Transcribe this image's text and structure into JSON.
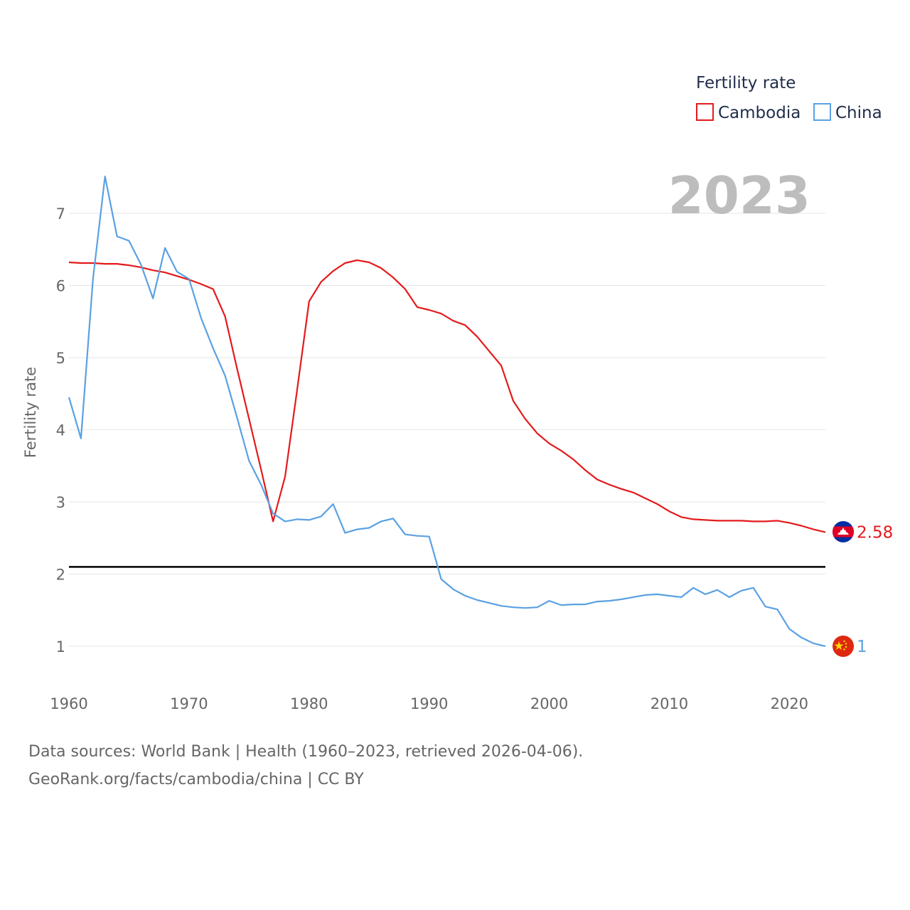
{
  "chart_data": {
    "type": "line",
    "title": "",
    "ylabel": "Fertility rate",
    "xlabel": "",
    "year_label": "2023",
    "xlim": [
      1960,
      2023
    ],
    "ylim": [
      0.5,
      7.5
    ],
    "x_ticks": [
      1960,
      1970,
      1980,
      1990,
      2000,
      2010,
      2020
    ],
    "y_ticks": [
      1,
      2,
      3,
      4,
      5,
      6,
      7
    ],
    "grid": true,
    "reference_line": {
      "y": 2.1,
      "color": "#000000"
    },
    "legend": {
      "title": "Fertility rate",
      "position": "top-right",
      "items": [
        {
          "name": "Cambodia",
          "color": "#e41a1c"
        },
        {
          "name": "China",
          "color": "#5aa1e3"
        }
      ]
    },
    "x": [
      1960,
      1961,
      1962,
      1963,
      1964,
      1965,
      1966,
      1967,
      1968,
      1969,
      1970,
      1971,
      1972,
      1973,
      1974,
      1975,
      1976,
      1977,
      1978,
      1979,
      1980,
      1981,
      1982,
      1983,
      1984,
      1985,
      1986,
      1987,
      1988,
      1989,
      1990,
      1991,
      1992,
      1993,
      1994,
      1995,
      1996,
      1997,
      1998,
      1999,
      2000,
      2001,
      2002,
      2003,
      2004,
      2005,
      2006,
      2007,
      2008,
      2009,
      2010,
      2011,
      2012,
      2013,
      2014,
      2015,
      2016,
      2017,
      2018,
      2019,
      2020,
      2021,
      2022,
      2023
    ],
    "series": [
      {
        "name": "Cambodia",
        "color": "#e41a1c",
        "end_label": "2.58",
        "values": [
          6.32,
          6.31,
          6.31,
          6.3,
          6.3,
          6.28,
          6.25,
          6.21,
          6.18,
          6.13,
          6.08,
          6.02,
          5.95,
          5.57,
          4.85,
          4.15,
          3.45,
          2.73,
          3.35,
          4.55,
          5.78,
          6.05,
          6.2,
          6.31,
          6.35,
          6.32,
          6.24,
          6.11,
          5.95,
          5.7,
          5.66,
          5.61,
          5.51,
          5.45,
          5.29,
          5.09,
          4.89,
          4.4,
          4.15,
          3.95,
          3.81,
          3.71,
          3.59,
          3.44,
          3.31,
          3.24,
          3.18,
          3.13,
          3.05,
          2.97,
          2.87,
          2.79,
          2.76,
          2.75,
          2.74,
          2.74,
          2.74,
          2.73,
          2.73,
          2.74,
          2.71,
          2.67,
          2.62,
          2.58
        ]
      },
      {
        "name": "China",
        "color": "#5aa1e3",
        "end_label": "1",
        "values": [
          4.45,
          3.88,
          6.09,
          7.51,
          6.68,
          6.62,
          6.29,
          5.82,
          6.52,
          6.19,
          6.09,
          5.55,
          5.13,
          4.75,
          4.17,
          3.57,
          3.24,
          2.84,
          2.73,
          2.76,
          2.75,
          2.8,
          2.97,
          2.57,
          2.62,
          2.64,
          2.73,
          2.77,
          2.55,
          2.53,
          2.52,
          1.93,
          1.79,
          1.7,
          1.64,
          1.6,
          1.56,
          1.54,
          1.53,
          1.54,
          1.63,
          1.57,
          1.58,
          1.58,
          1.62,
          1.63,
          1.65,
          1.68,
          1.71,
          1.72,
          1.7,
          1.68,
          1.81,
          1.72,
          1.78,
          1.68,
          1.77,
          1.81,
          1.55,
          1.51,
          1.24,
          1.12,
          1.04,
          1.0
        ]
      }
    ]
  },
  "footer": {
    "line1": "Data sources: World Bank | Health (1960–2023, retrieved 2026-04-06).",
    "line2": "GeoRank.org/facts/cambodia/china | CC BY"
  }
}
